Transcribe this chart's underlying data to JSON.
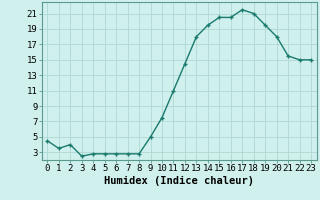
{
  "x": [
    0,
    1,
    2,
    3,
    4,
    5,
    6,
    7,
    8,
    9,
    10,
    11,
    12,
    13,
    14,
    15,
    16,
    17,
    18,
    19,
    20,
    21,
    22,
    23
  ],
  "y": [
    4.5,
    3.5,
    4.0,
    2.5,
    2.8,
    2.8,
    2.8,
    2.8,
    2.8,
    5.0,
    7.5,
    11.0,
    14.5,
    18.0,
    19.5,
    20.5,
    20.5,
    21.5,
    21.0,
    19.5,
    18.0,
    15.5,
    15.0,
    15.0
  ],
  "xlabel": "Humidex (Indice chaleur)",
  "ylim": [
    2,
    22.5
  ],
  "xlim": [
    -0.5,
    23.5
  ],
  "yticks": [
    3,
    5,
    7,
    9,
    11,
    13,
    15,
    17,
    19,
    21
  ],
  "xticks": [
    0,
    1,
    2,
    3,
    4,
    5,
    6,
    7,
    8,
    9,
    10,
    11,
    12,
    13,
    14,
    15,
    16,
    17,
    18,
    19,
    20,
    21,
    22,
    23
  ],
  "line_color": "#1a7a6e",
  "marker": "+",
  "bg_color": "#cff0ec",
  "grid_color": "#b0d8d2",
  "font_family": "monospace",
  "xlabel_fontsize": 7.5,
  "tick_fontsize": 6.5
}
